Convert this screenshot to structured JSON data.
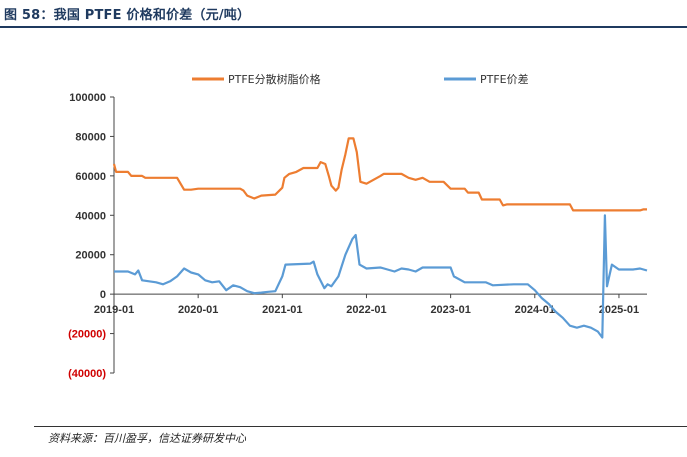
{
  "figure": {
    "title": "图 58：我国 PTFE 价格和价差（元/吨）",
    "source": "资料来源：百川盈孚，信达证券研发中心"
  },
  "colors": {
    "price": "#ED7D31",
    "spread": "#5B9BD5",
    "negative_label": "#D00000",
    "title": "#1F3A5F"
  },
  "chart_data": {
    "type": "line",
    "title": "",
    "xlabel": "",
    "ylabel": "",
    "ylim": [
      -40000,
      100000
    ],
    "xlim": [
      "2019-01",
      "2025-05"
    ],
    "yticks": [
      {
        "value": 100000,
        "label": "100000"
      },
      {
        "value": 80000,
        "label": "80000"
      },
      {
        "value": 60000,
        "label": "60000"
      },
      {
        "value": 40000,
        "label": "40000"
      },
      {
        "value": 20000,
        "label": "20000"
      },
      {
        "value": 0,
        "label": "0"
      },
      {
        "value": -20000,
        "label": "(20000)"
      },
      {
        "value": -40000,
        "label": "(40000)"
      }
    ],
    "xticks": [
      "2019-01",
      "2020-01",
      "2021-01",
      "2022-01",
      "2023-01",
      "2024-01",
      "2025-01"
    ],
    "legend_position": "top",
    "grid": false,
    "series": [
      {
        "name": "PTFE分散树脂价格",
        "color": "#ED7D31",
        "points": [
          [
            "2019-01",
            66000
          ],
          [
            "2019-01-10",
            62000
          ],
          [
            "2019-03",
            62000
          ],
          [
            "2019-03-15",
            60000
          ],
          [
            "2019-05",
            60000
          ],
          [
            "2019-05-15",
            59000
          ],
          [
            "2019-10",
            59000
          ],
          [
            "2019-11",
            53000
          ],
          [
            "2019-12",
            53000
          ],
          [
            "2020-01",
            53500
          ],
          [
            "2020-07",
            53500
          ],
          [
            "2020-07-15",
            52500
          ],
          [
            "2020-08",
            50000
          ],
          [
            "2020-09",
            48500
          ],
          [
            "2020-10",
            50000
          ],
          [
            "2020-12",
            50500
          ],
          [
            "2021-01",
            54000
          ],
          [
            "2021-01-10",
            59000
          ],
          [
            "2021-02",
            61000
          ],
          [
            "2021-03",
            62000
          ],
          [
            "2021-04",
            64000
          ],
          [
            "2021-06",
            64000
          ],
          [
            "2021-06-15",
            67000
          ],
          [
            "2021-07-05",
            66000
          ],
          [
            "2021-07-20",
            60000
          ],
          [
            "2021-08",
            55000
          ],
          [
            "2021-08-20",
            52500
          ],
          [
            "2021-09",
            54000
          ],
          [
            "2021-09-15",
            63000
          ],
          [
            "2021-10",
            71000
          ],
          [
            "2021-10-15",
            79000
          ],
          [
            "2021-11-05",
            79000
          ],
          [
            "2021-11-20",
            72000
          ],
          [
            "2021-12-05",
            57000
          ],
          [
            "2022-01",
            56000
          ],
          [
            "2022-02",
            58000
          ],
          [
            "2022-03",
            60000
          ],
          [
            "2022-03-15",
            61000
          ],
          [
            "2022-06",
            61000
          ],
          [
            "2022-07",
            59000
          ],
          [
            "2022-08",
            58000
          ],
          [
            "2022-09",
            59000
          ],
          [
            "2022-10",
            57000
          ],
          [
            "2022-12",
            57000
          ],
          [
            "2023-01",
            53500
          ],
          [
            "2023-03",
            53500
          ],
          [
            "2023-03-15",
            51500
          ],
          [
            "2023-05",
            51500
          ],
          [
            "2023-05-15",
            48000
          ],
          [
            "2023-08",
            48000
          ],
          [
            "2023-08-15",
            45000
          ],
          [
            "2023-09",
            45500
          ],
          [
            "2024-01",
            45500
          ],
          [
            "2024-06",
            45500
          ],
          [
            "2024-06-15",
            42500
          ],
          [
            "2024-12",
            42500
          ],
          [
            "2025-04",
            42500
          ],
          [
            "2025-04-15",
            43000
          ],
          [
            "2025-05",
            43000
          ]
        ]
      },
      {
        "name": "PTFE价差",
        "color": "#5B9BD5",
        "points": [
          [
            "2019-01",
            11500
          ],
          [
            "2019-03",
            11500
          ],
          [
            "2019-04",
            10000
          ],
          [
            "2019-04-15",
            12000
          ],
          [
            "2019-05",
            7000
          ],
          [
            "2019-07",
            6000
          ],
          [
            "2019-08",
            5000
          ],
          [
            "2019-09",
            6500
          ],
          [
            "2019-10",
            9000
          ],
          [
            "2019-11",
            13000
          ],
          [
            "2019-12",
            11000
          ],
          [
            "2020-01",
            10000
          ],
          [
            "2020-02",
            7000
          ],
          [
            "2020-03",
            6000
          ],
          [
            "2020-04",
            6500
          ],
          [
            "2020-05",
            2000
          ],
          [
            "2020-06",
            4500
          ],
          [
            "2020-07",
            3500
          ],
          [
            "2020-08",
            1500
          ],
          [
            "2020-09",
            500
          ],
          [
            "2020-10",
            800
          ],
          [
            "2020-11",
            1200
          ],
          [
            "2020-12",
            1500
          ],
          [
            "2021-01",
            9000
          ],
          [
            "2021-01-15",
            15000
          ],
          [
            "2021-05",
            15500
          ],
          [
            "2021-05-15",
            16500
          ],
          [
            "2021-06",
            10000
          ],
          [
            "2021-07",
            3000
          ],
          [
            "2021-07-15",
            5000
          ],
          [
            "2021-08",
            4000
          ],
          [
            "2021-09",
            9000
          ],
          [
            "2021-10",
            20000
          ],
          [
            "2021-11",
            28000
          ],
          [
            "2021-11-15",
            30000
          ],
          [
            "2021-12",
            15000
          ],
          [
            "2022-01",
            13000
          ],
          [
            "2022-03",
            13500
          ],
          [
            "2022-04",
            12500
          ],
          [
            "2022-05",
            11500
          ],
          [
            "2022-06",
            13000
          ],
          [
            "2022-07",
            12500
          ],
          [
            "2022-08",
            11500
          ],
          [
            "2022-09",
            13500
          ],
          [
            "2022-10",
            13500
          ],
          [
            "2023-01",
            13500
          ],
          [
            "2023-01-15",
            9000
          ],
          [
            "2023-03",
            6000
          ],
          [
            "2023-06",
            6000
          ],
          [
            "2023-07",
            4500
          ],
          [
            "2023-10",
            5000
          ],
          [
            "2023-12",
            5000
          ],
          [
            "2024-01",
            2000
          ],
          [
            "2024-02",
            -2000
          ],
          [
            "2024-03",
            -5000
          ],
          [
            "2024-04",
            -9000
          ],
          [
            "2024-05",
            -12000
          ],
          [
            "2024-06",
            -16000
          ],
          [
            "2024-07",
            -17000
          ],
          [
            "2024-08",
            -16000
          ],
          [
            "2024-09",
            -17000
          ],
          [
            "2024-10",
            -19000
          ],
          [
            "2024-10-20",
            -22000
          ],
          [
            "2024-11",
            40000
          ],
          [
            "2024-11-10",
            4000
          ],
          [
            "2024-12",
            15000
          ],
          [
            "2025-01",
            12500
          ],
          [
            "2025-03",
            12500
          ],
          [
            "2025-04",
            13000
          ],
          [
            "2025-05",
            12000
          ]
        ]
      }
    ]
  }
}
